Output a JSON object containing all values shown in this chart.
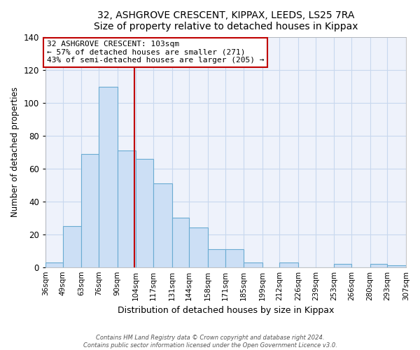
{
  "title1": "32, ASHGROVE CRESCENT, KIPPAX, LEEDS, LS25 7RA",
  "title2": "Size of property relative to detached houses in Kippax",
  "xlabel": "Distribution of detached houses by size in Kippax",
  "ylabel": "Number of detached properties",
  "bar_edges": [
    36,
    49,
    63,
    76,
    90,
    104,
    117,
    131,
    144,
    158,
    171,
    185,
    199,
    212,
    226,
    239,
    253,
    266,
    280,
    293,
    307
  ],
  "bar_heights": [
    3,
    25,
    69,
    110,
    71,
    66,
    51,
    30,
    24,
    11,
    11,
    3,
    0,
    3,
    0,
    0,
    2,
    0,
    2,
    1
  ],
  "bar_color": "#ccdff5",
  "bar_edgecolor": "#6aabd2",
  "property_value": 103,
  "vline_color": "#c00000",
  "annotation_text": "32 ASHGROVE CRESCENT: 103sqm\n← 57% of detached houses are smaller (271)\n43% of semi-detached houses are larger (205) →",
  "annotation_box_edgecolor": "#c00000",
  "annotation_box_facecolor": "#ffffff",
  "ylim": [
    0,
    140
  ],
  "yticks": [
    0,
    20,
    40,
    60,
    80,
    100,
    120,
    140
  ],
  "tick_labels": [
    "36sqm",
    "49sqm",
    "63sqm",
    "76sqm",
    "90sqm",
    "104sqm",
    "117sqm",
    "131sqm",
    "144sqm",
    "158sqm",
    "171sqm",
    "185sqm",
    "199sqm",
    "212sqm",
    "226sqm",
    "239sqm",
    "253sqm",
    "266sqm",
    "280sqm",
    "293sqm",
    "307sqm"
  ],
  "footer1": "Contains HM Land Registry data © Crown copyright and database right 2024.",
  "footer2": "Contains public sector information licensed under the Open Government Licence v3.0.",
  "fig_bg_color": "#ffffff",
  "axes_bg_color": "#eef2fb",
  "grid_color": "#c8d8ee"
}
